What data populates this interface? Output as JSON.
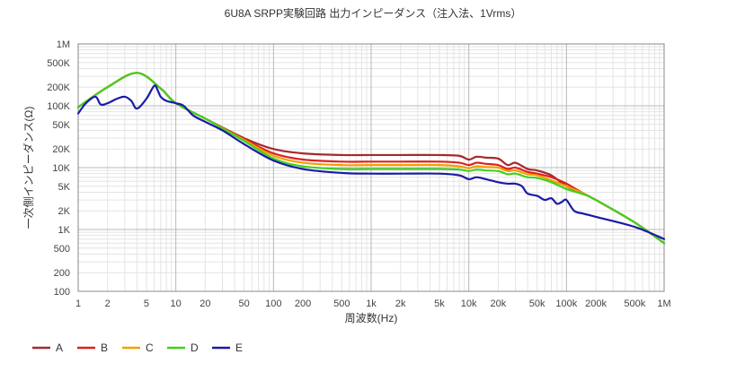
{
  "chart_data": {
    "type": "line",
    "title": "6U8A SRPP実験回路 出力インピーダンス（注入法、1Vrms）",
    "xlabel": "周波数(Hz)",
    "ylabel": "一次側インピーダンス(Ω)",
    "xscale": "log",
    "yscale": "log",
    "xlim": [
      1,
      1000000
    ],
    "ylim": [
      100,
      1000000
    ],
    "grid": true,
    "legend_position": "bottom-left",
    "x_ticks": [
      {
        "value": 1,
        "label": "1"
      },
      {
        "value": 2,
        "label": "2"
      },
      {
        "value": 5,
        "label": "5"
      },
      {
        "value": 10,
        "label": "10"
      },
      {
        "value": 20,
        "label": "20"
      },
      {
        "value": 50,
        "label": "50"
      },
      {
        "value": 100,
        "label": "100"
      },
      {
        "value": 200,
        "label": "200"
      },
      {
        "value": 500,
        "label": "500"
      },
      {
        "value": 1000,
        "label": "1k"
      },
      {
        "value": 2000,
        "label": "2k"
      },
      {
        "value": 5000,
        "label": "5k"
      },
      {
        "value": 10000,
        "label": "10k"
      },
      {
        "value": 20000,
        "label": "20k"
      },
      {
        "value": 50000,
        "label": "50k"
      },
      {
        "value": 100000,
        "label": "100k"
      },
      {
        "value": 200000,
        "label": "200k"
      },
      {
        "value": 500000,
        "label": "500k"
      },
      {
        "value": 1000000,
        "label": "1M"
      }
    ],
    "y_ticks": [
      {
        "value": 100,
        "label": "100"
      },
      {
        "value": 200,
        "label": "200"
      },
      {
        "value": 500,
        "label": "500"
      },
      {
        "value": 1000,
        "label": "1K"
      },
      {
        "value": 2000,
        "label": "2K"
      },
      {
        "value": 5000,
        "label": "5K"
      },
      {
        "value": 10000,
        "label": "10K"
      },
      {
        "value": 20000,
        "label": "20K"
      },
      {
        "value": 50000,
        "label": "50K"
      },
      {
        "value": 100000,
        "label": "100K"
      },
      {
        "value": 200000,
        "label": "200K"
      },
      {
        "value": 500000,
        "label": "500K"
      },
      {
        "value": 1000000,
        "label": "1M"
      }
    ],
    "series": [
      {
        "name": "A",
        "color": "#a52a2a",
        "x": [
          1,
          2,
          4,
          7,
          10,
          20,
          50,
          100,
          200,
          500,
          1000,
          2000,
          5000,
          8000,
          10000,
          12000,
          15000,
          20000,
          25000,
          30000,
          40000,
          50000,
          70000,
          100000,
          150000,
          200000,
          500000,
          1000000
        ],
        "y": [
          95000,
          200000,
          340000,
          190000,
          110000,
          62000,
          30000,
          20000,
          17000,
          16000,
          16000,
          16000,
          16000,
          15500,
          13500,
          15000,
          14500,
          14000,
          11000,
          12000,
          9500,
          9000,
          7500,
          5000,
          3800,
          3000,
          1300,
          600
        ]
      },
      {
        "name": "B",
        "color": "#e02020",
        "x": [
          1,
          2,
          4,
          7,
          10,
          20,
          50,
          100,
          200,
          500,
          1000,
          2000,
          5000,
          8000,
          10000,
          12000,
          15000,
          20000,
          25000,
          30000,
          40000,
          50000,
          70000,
          100000,
          150000,
          200000,
          500000,
          1000000
        ],
        "y": [
          95000,
          200000,
          340000,
          190000,
          110000,
          62000,
          29000,
          17000,
          13500,
          12500,
          12500,
          12500,
          12500,
          12000,
          11000,
          12000,
          11500,
          11000,
          9500,
          10000,
          8500,
          8000,
          7000,
          5500,
          3800,
          3000,
          1300,
          600
        ]
      },
      {
        "name": "C",
        "color": "#f0a000",
        "x": [
          1,
          2,
          4,
          7,
          10,
          20,
          50,
          100,
          200,
          500,
          1000,
          2000,
          5000,
          8000,
          10000,
          12000,
          15000,
          20000,
          25000,
          30000,
          40000,
          50000,
          70000,
          100000,
          150000,
          200000,
          500000,
          1000000
        ],
        "y": [
          95000,
          200000,
          340000,
          190000,
          110000,
          62000,
          28000,
          15500,
          12000,
          11000,
          11000,
          11000,
          11000,
          10500,
          9800,
          10500,
          10200,
          10000,
          8800,
          9000,
          7800,
          7500,
          6200,
          5000,
          3800,
          3000,
          1300,
          600
        ]
      },
      {
        "name": "D",
        "color": "#40d020",
        "x": [
          1,
          2,
          4,
          7,
          10,
          20,
          50,
          100,
          200,
          500,
          1000,
          2000,
          5000,
          8000,
          10000,
          12000,
          15000,
          20000,
          25000,
          30000,
          40000,
          50000,
          70000,
          100000,
          150000,
          200000,
          500000,
          1000000
        ],
        "y": [
          95000,
          200000,
          340000,
          190000,
          110000,
          62000,
          27000,
          14000,
          10500,
          9500,
          9500,
          9500,
          9500,
          9300,
          8800,
          9300,
          9000,
          8800,
          7800,
          8000,
          7000,
          6800,
          5800,
          4500,
          3700,
          3000,
          1300,
          600
        ]
      },
      {
        "name": "E",
        "color": "#1a1aa8",
        "x": [
          1,
          1.2,
          1.5,
          1.7,
          2,
          2.5,
          3,
          3.5,
          4,
          5,
          6,
          6.5,
          7,
          8,
          10,
          12,
          15,
          20,
          30,
          50,
          100,
          200,
          500,
          1000,
          2000,
          5000,
          8000,
          10000,
          12000,
          15000,
          20000,
          25000,
          30000,
          35000,
          40000,
          50000,
          60000,
          70000,
          80000,
          90000,
          100000,
          120000,
          150000,
          200000,
          500000,
          1000000
        ],
        "y": [
          75000,
          110000,
          140000,
          105000,
          110000,
          130000,
          140000,
          120000,
          90000,
          130000,
          210000,
          180000,
          140000,
          120000,
          110000,
          100000,
          70000,
          55000,
          40000,
          24000,
          13000,
          9500,
          8200,
          8000,
          8000,
          8000,
          7500,
          6500,
          7000,
          6500,
          5800,
          5500,
          5500,
          5000,
          3800,
          3500,
          3000,
          3200,
          2600,
          2800,
          3000,
          2000,
          1800,
          1600,
          1100,
          700
        ]
      }
    ]
  },
  "legend": {
    "items": [
      {
        "name": "A",
        "color": "#a52a2a"
      },
      {
        "name": "B",
        "color": "#e02020"
      },
      {
        "name": "C",
        "color": "#f0a000"
      },
      {
        "name": "D",
        "color": "#40d020"
      },
      {
        "name": "E",
        "color": "#1a1aa8"
      }
    ]
  }
}
